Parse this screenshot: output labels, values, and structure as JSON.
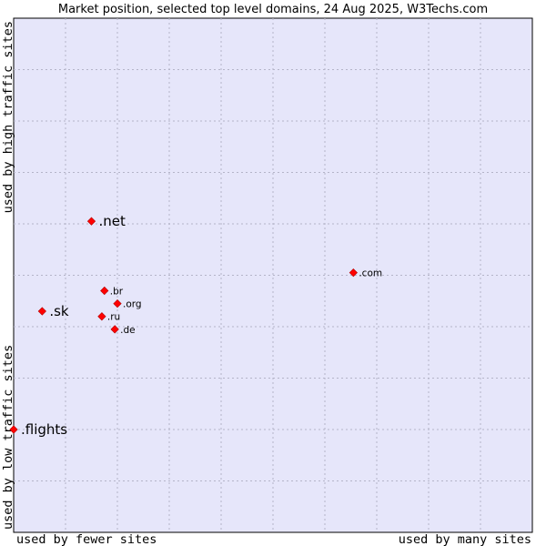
{
  "chart_data": {
    "type": "scatter",
    "title": "Market position, selected top level domains, 24 Aug 2025, W3Techs.com",
    "xlabel_left": "used by fewer sites",
    "xlabel_right": "used by many sites",
    "ylabel_bottom": "used by low traffic sites",
    "ylabel_top": "used by high traffic sites",
    "xlim": [
      0,
      100
    ],
    "ylim": [
      0,
      100
    ],
    "grid": true,
    "colors": {
      "plot_background": "#e6e6fa",
      "grid": "#b4b4c8",
      "marker": "#ff0000"
    },
    "points": [
      {
        "label": ".net",
        "x": 15.0,
        "y": 60.5,
        "size": "large"
      },
      {
        "label": ".sk",
        "x": 5.5,
        "y": 43.0,
        "size": "large"
      },
      {
        "label": ".flights",
        "x": 0.0,
        "y": 20.0,
        "size": "large"
      },
      {
        "label": ".com",
        "x": 65.5,
        "y": 50.5,
        "size": "small"
      },
      {
        "label": ".br",
        "x": 17.5,
        "y": 47.0,
        "size": "small"
      },
      {
        "label": ".org",
        "x": 20.0,
        "y": 44.5,
        "size": "small"
      },
      {
        "label": ".ru",
        "x": 17.0,
        "y": 42.0,
        "size": "small"
      },
      {
        "label": ".de",
        "x": 19.5,
        "y": 39.5,
        "size": "small"
      }
    ]
  }
}
